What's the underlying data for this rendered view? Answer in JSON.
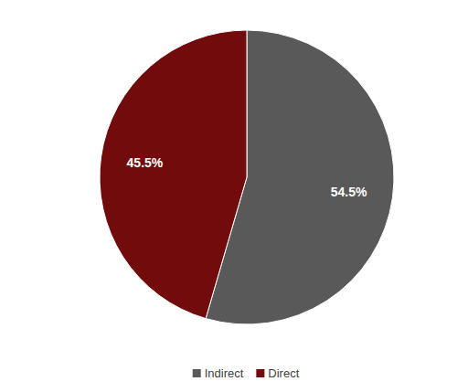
{
  "chart_data": {
    "type": "pie",
    "categories": [
      "Indirect",
      "Direct"
    ],
    "values": [
      54.5,
      45.5
    ],
    "value_labels": [
      "54.5%",
      "45.5%"
    ],
    "colors": [
      "#595959",
      "#720c0c"
    ],
    "data_labels": true,
    "legend": "bottom"
  }
}
